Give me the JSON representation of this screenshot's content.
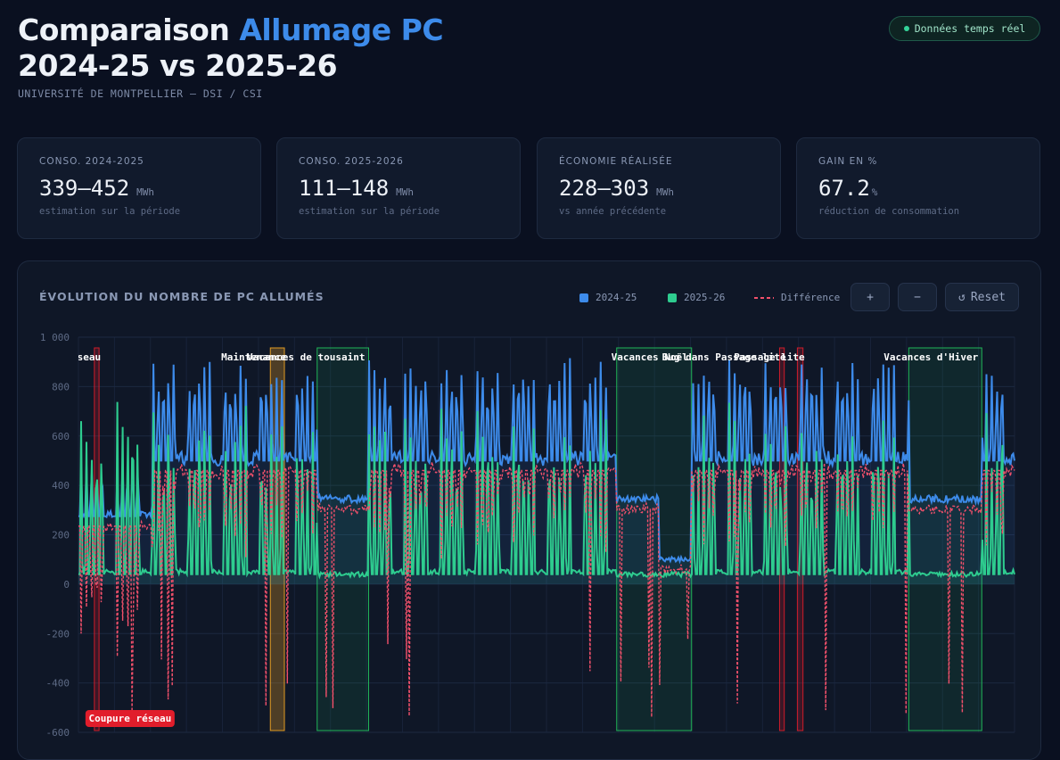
{
  "header": {
    "title_part1": "Comparaison ",
    "title_accent": "Allumage PC",
    "title_line2": "2024-25 vs 2025-26",
    "subtitle": "UNIVERSITÉ DE MONTPELLIER — DSI / CSI",
    "live_badge": "Données temps réel"
  },
  "cards": [
    {
      "label": "CONSO. 2024-2025",
      "value": "339–452",
      "unit": "MWh",
      "note": "estimation sur la période"
    },
    {
      "label": "CONSO. 2025-2026",
      "value": "111–148",
      "unit": "MWh",
      "note": "estimation sur la période"
    },
    {
      "label": "ÉCONOMIE RÉALISÉE",
      "value": "228–303",
      "unit": "MWh",
      "note": "vs année précédente"
    },
    {
      "label": "GAIN EN %",
      "value": "67.2",
      "unit": "%",
      "note": "réduction de consommation"
    }
  ],
  "panel": {
    "title": "ÉVOLUTION DU NOMBRE DE PC ALLUMÉS",
    "zoom_in": "+",
    "zoom_out": "−",
    "reset": "Reset",
    "reset_icon": "↺"
  },
  "colors": {
    "accent": "#3d8bea",
    "s2024": "#3d8bea",
    "s2025": "#2ecc8f",
    "diff": "#f2506b",
    "outage": "#e11d2b",
    "maintenance": "#f5a623",
    "holiday": "#22c55e"
  },
  "chart_data": {
    "type": "line",
    "ylim": [
      -600,
      1000
    ],
    "yticks": [
      1000,
      800,
      600,
      400,
      200,
      0,
      -200,
      -400,
      -600
    ],
    "ytick_labels": [
      "1 000",
      "800",
      "600",
      "400",
      "200",
      "0",
      "-200",
      "-400",
      "-600"
    ],
    "grid": true,
    "legend_position": "top-right",
    "series": [
      {
        "name": "2024-25",
        "key": "s2024"
      },
      {
        "name": "2025-26",
        "key": "s2025"
      },
      {
        "name": "Différence",
        "key": "diff"
      }
    ],
    "annotations": [
      {
        "label": "Coupure réseau",
        "kind": "outage",
        "start": 0.017,
        "end": 0.022
      },
      {
        "label": "Maintenance",
        "kind": "maintenance",
        "start": 0.205,
        "end": 0.22
      },
      {
        "label": "Vacances de tousaint",
        "kind": "holiday",
        "start": 0.255,
        "end": 0.31
      },
      {
        "label": "Vacances Noël",
        "kind": "holiday",
        "start": 0.575,
        "end": 0.655
      },
      {
        "label": "Bug dans Passage lite",
        "kind": "outage",
        "start": 0.749,
        "end": 0.754
      },
      {
        "label": "Passage lite",
        "kind": "outage",
        "start": 0.768,
        "end": 0.774
      },
      {
        "label": "Vacances d'Hiver",
        "kind": "holiday",
        "start": 0.887,
        "end": 0.965
      }
    ]
  }
}
